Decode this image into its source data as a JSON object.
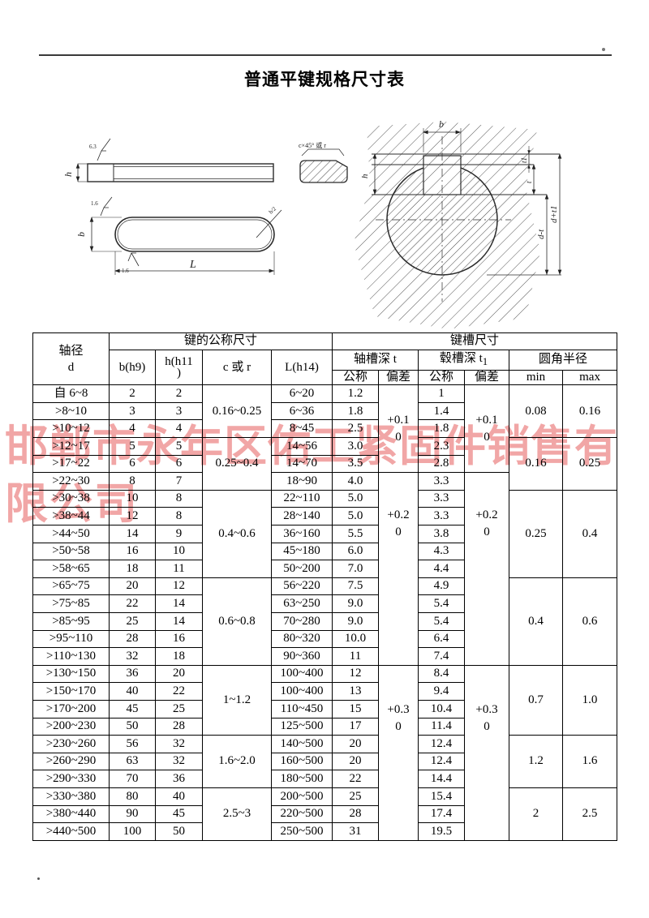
{
  "page": {
    "title": "普通平键规格尺寸表"
  },
  "watermark": {
    "line1": "邯郸市永年区佑工紧固件销售有",
    "line2": "限公司",
    "color": "#e96f6f"
  },
  "diagram": {
    "labels": {
      "rough_side": "6.3",
      "h_side": "h",
      "b_top": "b",
      "rough_top": "1.6",
      "rough_bottom": "1.6",
      "length": "L",
      "end_radius": "b/2",
      "chamfer_note": "c×45° 或 r",
      "b_shaft": "b",
      "h_shaft": "h",
      "t1_dim": "t1",
      "t_dim": "t",
      "d_minus_t": "d-t",
      "d_plus_t1": "d+t1"
    }
  },
  "table": {
    "header": {
      "col_d_line1": "轴径",
      "col_d_line2": "d",
      "group_key": "键的公称尺寸",
      "group_slot": "键槽尺寸",
      "b": "b(h9)",
      "h_line1": "h(h11",
      "h_line2": ")",
      "c": "c 或 r",
      "L": "L(h14)",
      "t_axis": "轴槽深 t",
      "t_hub_label": "毂槽深 t",
      "t_hub_sub": "1",
      "radius": "圆角半径",
      "nominal": "公称",
      "deviation": "偏差",
      "min": "min",
      "max": "max"
    },
    "rows": [
      {
        "d": "自 6~8",
        "b": "2",
        "h": "2",
        "L": "6~20",
        "t": "1.2",
        "t1": "1"
      },
      {
        "d": ">8~10",
        "b": "3",
        "h": "3",
        "L": "6~36",
        "t": "1.8",
        "t1": "1.4"
      },
      {
        "d": ">10~12",
        "b": "4",
        "h": "4",
        "L": "8~45",
        "t": "2.5",
        "t1": "1.8"
      },
      {
        "d": ">12~17",
        "b": "5",
        "h": "5",
        "L": "14~56",
        "t": "3.0",
        "t1": "2.3"
      },
      {
        "d": ">17~22",
        "b": "6",
        "h": "6",
        "L": "14~70",
        "t": "3.5",
        "t1": "2.8"
      },
      {
        "d": ">22~30",
        "b": "8",
        "h": "7",
        "L": "18~90",
        "t": "4.0",
        "t1": "3.3"
      },
      {
        "d": ">30~38",
        "b": "10",
        "h": "8",
        "L": "22~110",
        "t": "5.0",
        "t1": "3.3"
      },
      {
        "d": ">38~44",
        "b": "12",
        "h": "8",
        "L": "28~140",
        "t": "5.0",
        "t1": "3.3"
      },
      {
        "d": ">44~50",
        "b": "14",
        "h": "9",
        "L": "36~160",
        "t": "5.5",
        "t1": "3.8"
      },
      {
        "d": ">50~58",
        "b": "16",
        "h": "10",
        "L": "45~180",
        "t": "6.0",
        "t1": "4.3"
      },
      {
        "d": ">58~65",
        "b": "18",
        "h": "11",
        "L": "50~200",
        "t": "7.0",
        "t1": "4.4"
      },
      {
        "d": ">65~75",
        "b": "20",
        "h": "12",
        "L": "56~220",
        "t": "7.5",
        "t1": "4.9"
      },
      {
        "d": ">75~85",
        "b": "22",
        "h": "14",
        "L": "63~250",
        "t": "9.0",
        "t1": "5.4"
      },
      {
        "d": ">85~95",
        "b": "25",
        "h": "14",
        "L": "70~280",
        "t": "9.0",
        "t1": "5.4"
      },
      {
        "d": ">95~110",
        "b": "28",
        "h": "16",
        "L": "80~320",
        "t": "10.0",
        "t1": "6.4"
      },
      {
        "d": ">110~130",
        "b": "32",
        "h": "18",
        "L": "90~360",
        "t": "11",
        "t1": "7.4"
      },
      {
        "d": ">130~150",
        "b": "36",
        "h": "20",
        "L": "100~400",
        "t": "12",
        "t1": "8.4"
      },
      {
        "d": ">150~170",
        "b": "40",
        "h": "22",
        "L": "100~400",
        "t": "13",
        "t1": "9.4"
      },
      {
        "d": ">170~200",
        "b": "45",
        "h": "25",
        "L": "110~450",
        "t": "15",
        "t1": "10.4"
      },
      {
        "d": ">200~230",
        "b": "50",
        "h": "28",
        "L": "125~500",
        "t": "17",
        "t1": "11.4"
      },
      {
        "d": ">230~260",
        "b": "56",
        "h": "32",
        "L": "140~500",
        "t": "20",
        "t1": "12.4"
      },
      {
        "d": ">260~290",
        "b": "63",
        "h": "32",
        "L": "160~500",
        "t": "20",
        "t1": "12.4"
      },
      {
        "d": ">290~330",
        "b": "70",
        "h": "36",
        "L": "180~500",
        "t": "22",
        "t1": "14.4"
      },
      {
        "d": ">330~380",
        "b": "80",
        "h": "40",
        "L": "200~500",
        "t": "25",
        "t1": "15.4"
      },
      {
        "d": ">380~440",
        "b": "90",
        "h": "45",
        "L": "220~500",
        "t": "28",
        "t1": "17.4"
      },
      {
        "d": ">440~500",
        "b": "100",
        "h": "50",
        "L": "250~500",
        "t": "31",
        "t1": "19.5"
      }
    ],
    "c_groups": [
      {
        "start": 0,
        "span": 3,
        "text": "0.16~0.25"
      },
      {
        "start": 3,
        "span": 3,
        "text": "0.25~0.4"
      },
      {
        "start": 6,
        "span": 5,
        "text": "0.4~0.6"
      },
      {
        "start": 11,
        "span": 5,
        "text": "0.6~0.8"
      },
      {
        "start": 16,
        "span": 4,
        "text": "1~1.2"
      },
      {
        "start": 20,
        "span": 3,
        "text": "1.6~2.0"
      },
      {
        "start": 23,
        "span": 3,
        "text": "2.5~3"
      }
    ],
    "dev_groups": [
      {
        "start": 0,
        "span": 5,
        "plus": "+0.1",
        "zero": "0",
        "pad": 0
      },
      {
        "start": 5,
        "span": 11,
        "plus": "+0.2",
        "zero": "0",
        "pad": 42
      },
      {
        "start": 16,
        "span": 10,
        "plus": "+0.3",
        "zero": "0",
        "pad": 44
      }
    ],
    "radius_groups": [
      {
        "start": 0,
        "span": 3,
        "min": "0.08",
        "max": "0.16"
      },
      {
        "start": 3,
        "span": 3,
        "min": "0.16",
        "max": "0.25"
      },
      {
        "start": 6,
        "span": 5,
        "min": "0.25",
        "max": "0.4"
      },
      {
        "start": 11,
        "span": 5,
        "min": "0.4",
        "max": "0.6"
      },
      {
        "start": 16,
        "span": 4,
        "min": "0.7",
        "max": "1.0"
      },
      {
        "start": 20,
        "span": 3,
        "min": "1.2",
        "max": "1.6"
      },
      {
        "start": 23,
        "span": 3,
        "min": "2",
        "max": "2.5"
      }
    ]
  }
}
